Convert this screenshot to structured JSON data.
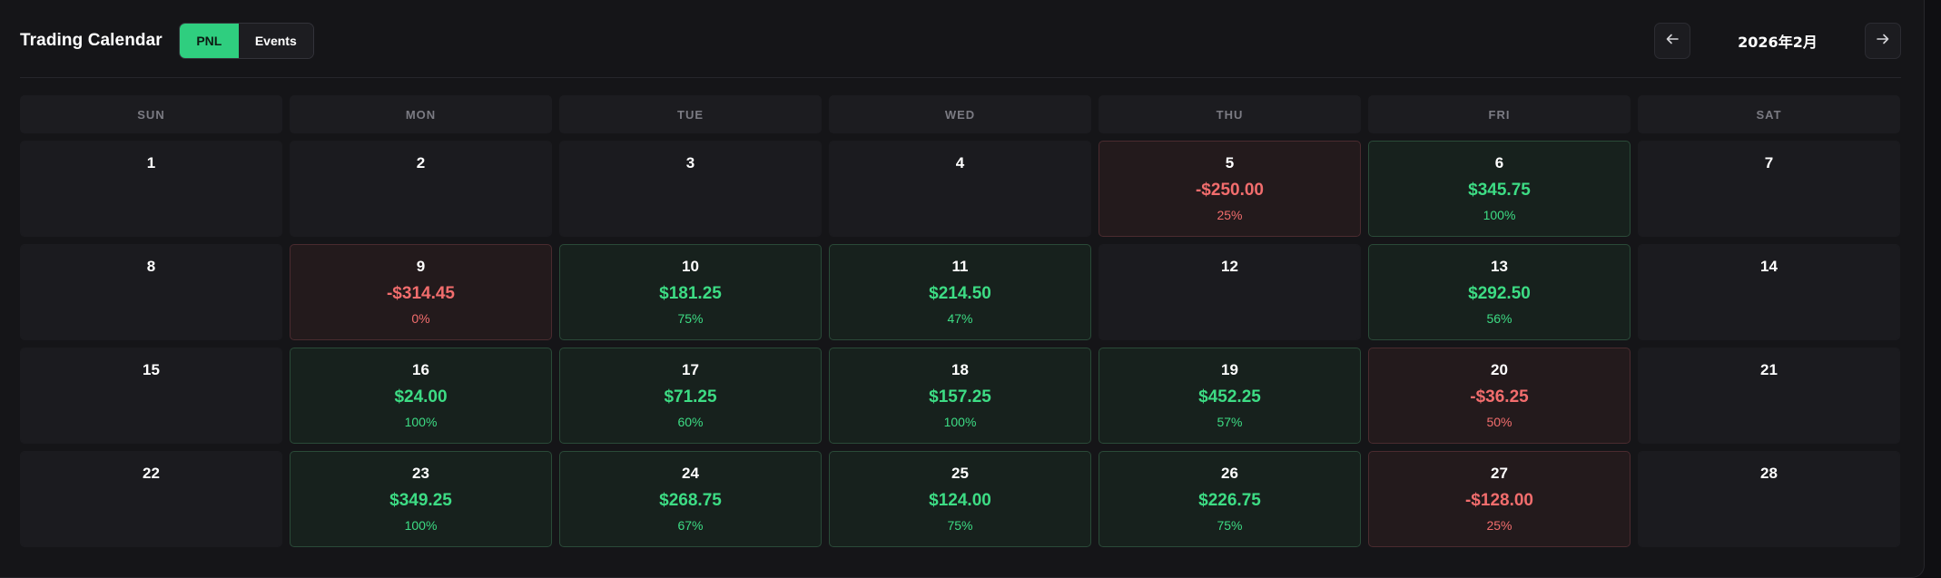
{
  "header": {
    "title": "Trading Calendar",
    "toggle": {
      "pnl_label": "PNL",
      "events_label": "Events",
      "active": "PNL"
    },
    "month_label": "2026年2月",
    "prev_icon": "arrow-left-icon",
    "next_icon": "arrow-right-icon"
  },
  "colors": {
    "accent": "#2fce7f",
    "win": "#3ddc84",
    "loss": "#f26d6d",
    "background": "#151518"
  },
  "weekdays": [
    "SUN",
    "MON",
    "TUE",
    "WED",
    "THU",
    "FRI",
    "SAT"
  ],
  "weeks": [
    [
      {
        "day": "1",
        "pnl": "",
        "pct": "",
        "result": "none"
      },
      {
        "day": "2",
        "pnl": "",
        "pct": "",
        "result": "none"
      },
      {
        "day": "3",
        "pnl": "",
        "pct": "",
        "result": "none"
      },
      {
        "day": "4",
        "pnl": "",
        "pct": "",
        "result": "none"
      },
      {
        "day": "5",
        "pnl": "-$250.00",
        "pct": "25%",
        "result": "loss"
      },
      {
        "day": "6",
        "pnl": "$345.75",
        "pct": "100%",
        "result": "win"
      },
      {
        "day": "7",
        "pnl": "",
        "pct": "",
        "result": "none"
      }
    ],
    [
      {
        "day": "8",
        "pnl": "",
        "pct": "",
        "result": "none"
      },
      {
        "day": "9",
        "pnl": "-$314.45",
        "pct": "0%",
        "result": "loss"
      },
      {
        "day": "10",
        "pnl": "$181.25",
        "pct": "75%",
        "result": "win"
      },
      {
        "day": "11",
        "pnl": "$214.50",
        "pct": "47%",
        "result": "win"
      },
      {
        "day": "12",
        "pnl": "",
        "pct": "",
        "result": "none"
      },
      {
        "day": "13",
        "pnl": "$292.50",
        "pct": "56%",
        "result": "win"
      },
      {
        "day": "14",
        "pnl": "",
        "pct": "",
        "result": "none"
      }
    ],
    [
      {
        "day": "15",
        "pnl": "",
        "pct": "",
        "result": "none"
      },
      {
        "day": "16",
        "pnl": "$24.00",
        "pct": "100%",
        "result": "win"
      },
      {
        "day": "17",
        "pnl": "$71.25",
        "pct": "60%",
        "result": "win"
      },
      {
        "day": "18",
        "pnl": "$157.25",
        "pct": "100%",
        "result": "win"
      },
      {
        "day": "19",
        "pnl": "$452.25",
        "pct": "57%",
        "result": "win"
      },
      {
        "day": "20",
        "pnl": "-$36.25",
        "pct": "50%",
        "result": "loss"
      },
      {
        "day": "21",
        "pnl": "",
        "pct": "",
        "result": "none"
      }
    ],
    [
      {
        "day": "22",
        "pnl": "",
        "pct": "",
        "result": "none"
      },
      {
        "day": "23",
        "pnl": "$349.25",
        "pct": "100%",
        "result": "win"
      },
      {
        "day": "24",
        "pnl": "$268.75",
        "pct": "67%",
        "result": "win"
      },
      {
        "day": "25",
        "pnl": "$124.00",
        "pct": "75%",
        "result": "win"
      },
      {
        "day": "26",
        "pnl": "$226.75",
        "pct": "75%",
        "result": "win"
      },
      {
        "day": "27",
        "pnl": "-$128.00",
        "pct": "25%",
        "result": "loss"
      },
      {
        "day": "28",
        "pnl": "",
        "pct": "",
        "result": "none"
      }
    ]
  ]
}
